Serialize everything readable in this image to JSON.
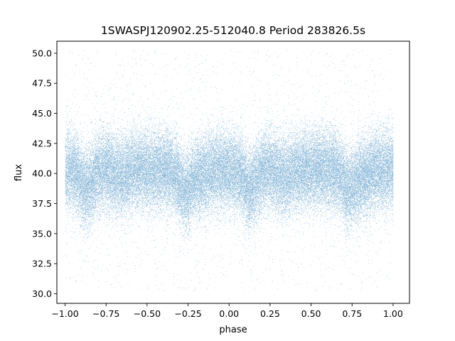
{
  "chart_data": {
    "type": "scatter",
    "title": "1SWASPJ120902.25-512040.8 Period 283826.5s",
    "xlabel": "phase",
    "ylabel": "flux",
    "xlim": [
      -1.05,
      1.1
    ],
    "ylim": [
      29.2,
      51.0
    ],
    "xticks": [
      -1.0,
      -0.75,
      -0.5,
      -0.25,
      0.0,
      0.25,
      0.5,
      0.75,
      1.0
    ],
    "xtick_labels": [
      "−1.00",
      "−0.75",
      "−0.50",
      "−0.25",
      "0.00",
      "0.25",
      "0.50",
      "0.75",
      "1.00"
    ],
    "yticks": [
      30.0,
      32.5,
      35.0,
      37.5,
      40.0,
      42.5,
      45.0,
      47.5,
      50.0
    ],
    "ytick_labels": [
      "30.0",
      "32.5",
      "35.0",
      "37.5",
      "40.0",
      "42.5",
      "45.0",
      "47.5",
      "50.0"
    ],
    "grid": false,
    "marker_color": "#1f77b4",
    "series": [
      {
        "x_range": [
          -1.0,
          1.0
        ],
        "folded_period_phase": 1.0,
        "approx_points": 60000,
        "central_flux": 40.3,
        "band_sd": 1.7,
        "primary_dip_phases": [
          -0.87,
          -0.27,
          0.13,
          0.73
        ],
        "secondary_dip_phases": [
          -0.66,
          -0.18,
          0.34,
          0.82
        ],
        "primary_dip_depth": 1.6,
        "min_flux": 30.2,
        "max_flux": 50.3
      }
    ]
  }
}
